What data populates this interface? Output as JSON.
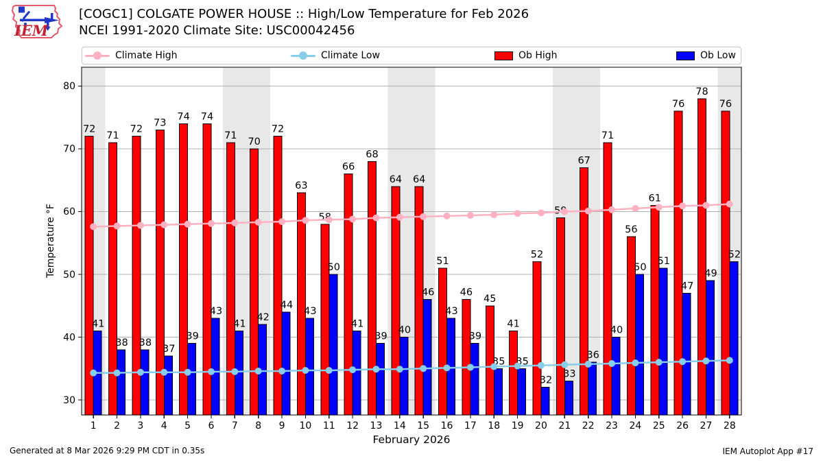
{
  "header": {
    "title_line1": "[COGC1] COLGATE POWER HOUSE :: High/Low Temperature for Feb 2026",
    "title_line2": "NCEI 1991-2020 Climate Site: USC00042456",
    "logo_text": "IEM"
  },
  "legend": [
    {
      "label": "Climate High",
      "marker": "line",
      "color": "#ffb0c1"
    },
    {
      "label": "Climate Low",
      "marker": "line",
      "color": "#87ceeb"
    },
    {
      "label": "Ob High",
      "marker": "box",
      "color": "#ff0000"
    },
    {
      "label": "Ob Low",
      "marker": "box",
      "color": "#0000ff"
    }
  ],
  "chart_data": {
    "type": "bar",
    "title": "[COGC1] COLGATE POWER HOUSE :: High/Low Temperature for Feb 2026",
    "subtitle": "NCEI 1991-2020 Climate Site: USC00042456",
    "xlabel": "February 2026",
    "ylabel": "Temperature °F",
    "ylim": [
      27.6,
      83.0
    ],
    "yticks": [
      30,
      40,
      50,
      60,
      70,
      80
    ],
    "grid": "horizontal",
    "x": [
      1,
      2,
      3,
      4,
      5,
      6,
      7,
      8,
      9,
      10,
      11,
      12,
      13,
      14,
      15,
      16,
      17,
      18,
      19,
      20,
      21,
      22,
      23,
      24,
      25,
      26,
      27,
      28
    ],
    "weekend_shaded_days": [
      1,
      7,
      8,
      14,
      15,
      21,
      22,
      28
    ],
    "weekend_band_color": "#e8e8e8",
    "gridline_color": "#b0b0b0",
    "series": [
      {
        "name": "Ob High",
        "type": "bar",
        "color": "#ff0000",
        "values": [
          72,
          71,
          72,
          73,
          74,
          74,
          71,
          70,
          72,
          63,
          58,
          66,
          68,
          64,
          64,
          51,
          46,
          45,
          41,
          52,
          59,
          67,
          71,
          56,
          61,
          76,
          78,
          76
        ]
      },
      {
        "name": "Ob Low",
        "type": "bar",
        "color": "#0000ff",
        "values": [
          41,
          38,
          38,
          37,
          39,
          43,
          41,
          42,
          44,
          43,
          50,
          41,
          39,
          40,
          46,
          43,
          39,
          35,
          35,
          32,
          33,
          36,
          40,
          50,
          51,
          47,
          49,
          52
        ]
      },
      {
        "name": "Climate High",
        "type": "line",
        "color": "#ffb0c1",
        "values": [
          57.6,
          57.7,
          57.8,
          57.9,
          58.0,
          58.1,
          58.2,
          58.3,
          58.4,
          58.6,
          58.7,
          58.8,
          59.0,
          59.1,
          59.2,
          59.3,
          59.4,
          59.5,
          59.7,
          59.8,
          60.0,
          60.1,
          60.3,
          60.5,
          60.7,
          60.9,
          61.0,
          61.2
        ]
      },
      {
        "name": "Climate Low",
        "type": "line",
        "color": "#87ceeb",
        "values": [
          34.3,
          34.3,
          34.4,
          34.4,
          34.4,
          34.5,
          34.5,
          34.6,
          34.6,
          34.7,
          34.7,
          34.8,
          34.9,
          34.9,
          35.0,
          35.1,
          35.2,
          35.3,
          35.4,
          35.5,
          35.6,
          35.7,
          35.8,
          35.9,
          36.0,
          36.1,
          36.2,
          36.3
        ]
      }
    ],
    "legend_position": "top"
  },
  "footer": {
    "left": "Generated at 8 Mar 2026 9:29 PM CDT in 0.35s",
    "right": "IEM Autoplot App #17"
  }
}
